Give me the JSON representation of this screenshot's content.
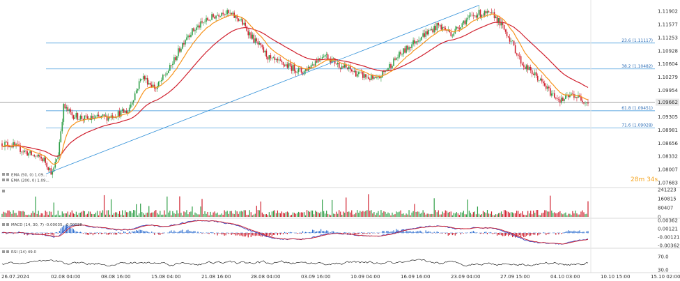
{
  "chart_data": {
    "type": "line",
    "instrument_panel": {
      "price_ticks": [
        "1.11902",
        "1.11577",
        "1.11253",
        "1.10928",
        "1.10604",
        "1.10279",
        "1.09954",
        "1.09305",
        "1.08981",
        "1.08656",
        "1.08332",
        "1.08007",
        "1.07683"
      ],
      "current_price": "1.09662",
      "countdown": "28m 34s",
      "fib_levels": [
        {
          "label": "23.6 (1.11117)",
          "value": 1.11117
        },
        {
          "label": "38.2 (1.10482)",
          "value": 1.10482
        },
        {
          "label": "61.8 (1.09451)",
          "value": 1.09451
        },
        {
          "label": "71.6 (1.09028)",
          "value": 1.09028
        }
      ],
      "legend": [
        "EMA (50, 0) 1.09...",
        "EMA (200, 0) 1.09..."
      ],
      "series": [
        {
          "name": "EMA (50, 0)",
          "color": "#f7941d"
        },
        {
          "name": "EMA (200, 0)",
          "color": "#d0202e"
        }
      ]
    },
    "volume_panel": {
      "ticks": [
        "241223",
        "160815",
        "80407",
        "0"
      ]
    },
    "macd_panel": {
      "legend": "MACD (14, 30, 7) -0.00035, -0.00038",
      "ticks": [
        "0.00362",
        "0.00121",
        "-0.00121",
        "-0.00362"
      ]
    },
    "rsi_panel": {
      "legend": "RSI (14) 49.0",
      "ticks": [
        "70.0",
        "30.0"
      ]
    },
    "x_ticks": [
      "26.07.2024",
      "02.08 04:00",
      "08.08 16:00",
      "15.08 04:00",
      "21.08 16:00",
      "28.08 04:00",
      "03.09 16:00",
      "10.09 04:00",
      "16.09 16:00",
      "23.09 04:00",
      "27.09 15:00",
      "04.10 03:00",
      "10.10 15:00",
      "15.10 02:00"
    ],
    "colors": {
      "bull": "#2e9e46",
      "bear": "#d0202e",
      "ema50": "#f7941d",
      "ema200": "#d0202e",
      "fib": "#2f8fd8",
      "trend": "#2f8fd8",
      "macd_line": "#3a4bc4",
      "macd_signal": "#d0202e"
    }
  }
}
